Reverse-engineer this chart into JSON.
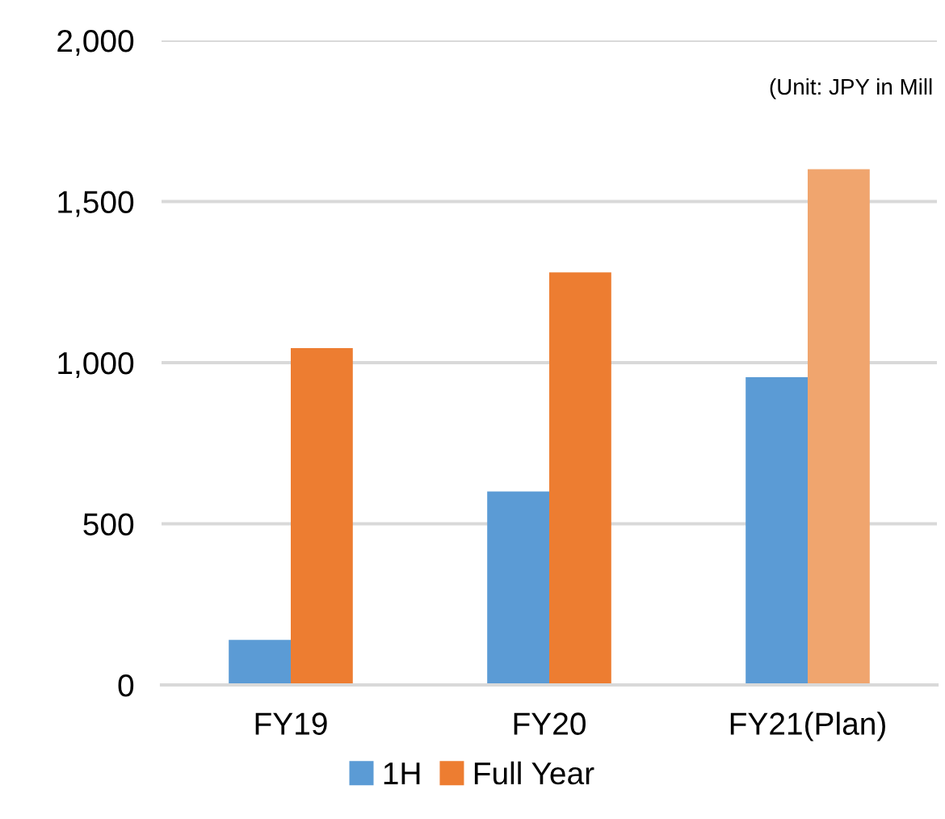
{
  "chart_data": {
    "type": "bar",
    "categories": [
      "FY19",
      "FY20",
      "FY21(Plan)"
    ],
    "series": [
      {
        "name": "1H",
        "color": "#5b9bd5",
        "values": [
          140,
          600,
          955
        ]
      },
      {
        "name": "Full Year",
        "color": "#ed7d31",
        "colors": [
          "#ed7d31",
          "#ed7d31",
          "#f0a56e"
        ],
        "values": [
          1045,
          1280,
          1600
        ]
      }
    ],
    "ylim": [
      0,
      2000
    ],
    "yticks": [
      {
        "value": 0,
        "label": "0"
      },
      {
        "value": 500,
        "label": "500"
      },
      {
        "value": 1000,
        "label": "1,000"
      },
      {
        "value": 1500,
        "label": "1,500"
      },
      {
        "value": 2000,
        "label": "2,000"
      }
    ],
    "grid": "y",
    "legend": "bottom",
    "annotations": [
      "(Unit: JPY in Mill"
    ]
  }
}
